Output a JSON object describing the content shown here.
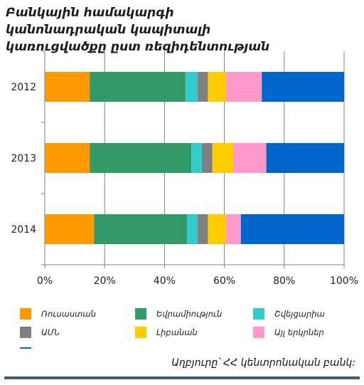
{
  "title": "Բանկային համակարգի կանոնադրական կապիտալի կառուցվածքը ըստ ռեզիդենտության",
  "source": "Աղբյուրը՝ ՀՀ կենտրոնական բանկ:",
  "colors": {
    "series": [
      "#ff9900",
      "#339966",
      "#33cccc",
      "#808080",
      "#ffcc00",
      "#ff99cc",
      "#0066cc"
    ],
    "grid": "#808080",
    "axis": "#808080",
    "bottom_rule": "#3b5f7a"
  },
  "chart_data": {
    "type": "bar",
    "orientation": "horizontal",
    "stacked": "percent",
    "categories": [
      "2012",
      "2013",
      "2014"
    ],
    "series": [
      {
        "name": "Ռուսաստան",
        "values": [
          15,
          15,
          16.5
        ]
      },
      {
        "name": "Եվրամիություն",
        "values": [
          32,
          34,
          31
        ]
      },
      {
        "name": "Շվեյցարիա",
        "values": [
          4,
          3.5,
          3.5
        ]
      },
      {
        "name": "ԱՄՆ",
        "values": [
          3.5,
          3.5,
          3.5
        ]
      },
      {
        "name": "Լիբանան",
        "values": [
          6,
          7,
          6
        ]
      },
      {
        "name": "Այլ երկրներ",
        "values": [
          12,
          11,
          5
        ]
      },
      {
        "name": "",
        "values": [
          27.5,
          26,
          34.5
        ]
      }
    ],
    "xlim": [
      0,
      100
    ],
    "x_ticks": [
      "0%",
      "20%",
      "40%",
      "60%",
      "80%",
      "100%"
    ],
    "grid": "vertical",
    "legend": "bottom"
  }
}
